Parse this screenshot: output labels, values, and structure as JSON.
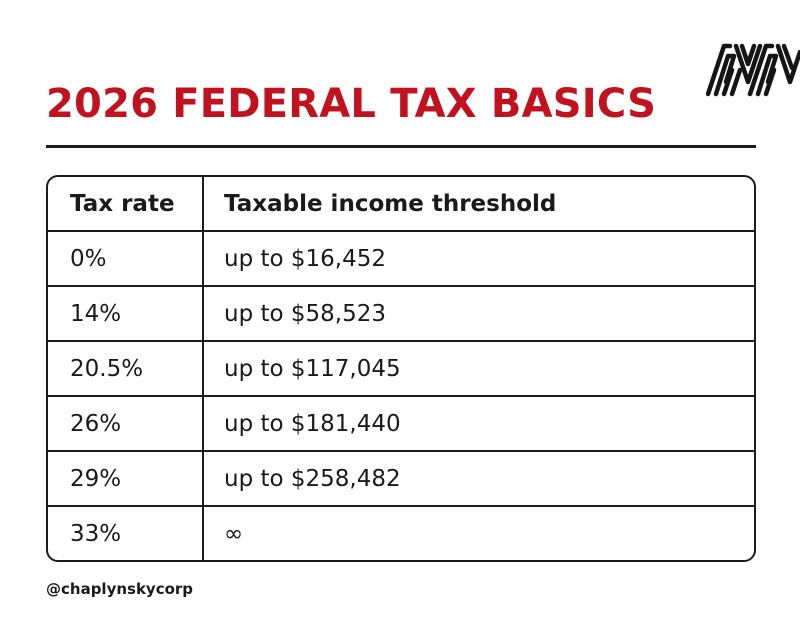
{
  "colors": {
    "title": "#c1121f",
    "text": "#1a1a1a",
    "border": "#1c1c1c",
    "background": "#ffffff"
  },
  "logo": {
    "icon": "brand-logo-icon"
  },
  "title": "2026 FEDERAL TAX BASICS",
  "table": {
    "headers": {
      "rate": "Tax rate",
      "threshold": "Taxable income threshold"
    },
    "rows": [
      {
        "rate": "0%",
        "threshold": "up to $16,452"
      },
      {
        "rate": "14%",
        "threshold": "up to $58,523"
      },
      {
        "rate": "20.5%",
        "threshold": "up to $117,045"
      },
      {
        "rate": "26%",
        "threshold": "up to $181,440"
      },
      {
        "rate": "29%",
        "threshold": "up to $258,482"
      },
      {
        "rate": "33%",
        "threshold": "∞"
      }
    ]
  },
  "footer": {
    "handle": "@chaplynskycorp"
  }
}
